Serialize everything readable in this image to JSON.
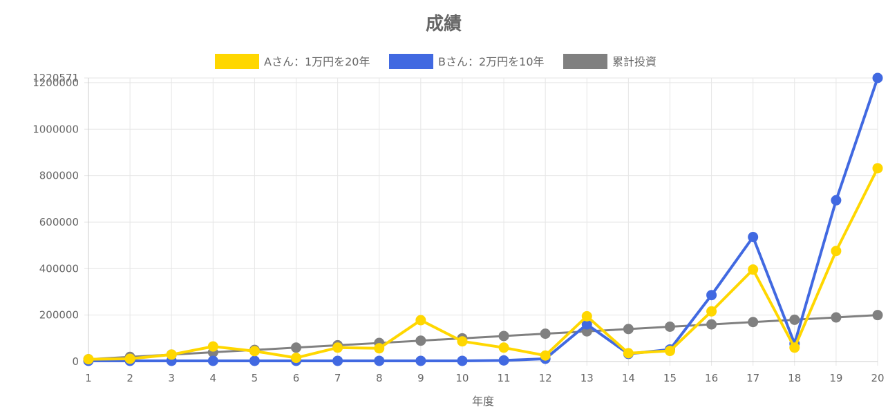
{
  "chart_data": {
    "type": "line",
    "title": "成績",
    "xlabel": "年度",
    "ylabel": "",
    "categories": [
      "1",
      "2",
      "3",
      "4",
      "5",
      "6",
      "7",
      "8",
      "9",
      "10",
      "11",
      "12",
      "13",
      "14",
      "15",
      "16",
      "17",
      "18",
      "19",
      "20"
    ],
    "y_max_label": "1220571",
    "y_ticks": [
      "0",
      "200000",
      "400000",
      "600000",
      "800000",
      "1000000",
      "1200000"
    ],
    "ylim": [
      0,
      1220571
    ],
    "grid": true,
    "legend_position": "top",
    "series": [
      {
        "name": "Aさん：1万円を20年",
        "color": "#FFD700",
        "values": [
          10000,
          12000,
          30000,
          65000,
          45000,
          16000,
          60000,
          57000,
          178000,
          87000,
          60000,
          26000,
          195000,
          36000,
          46000,
          216000,
          396000,
          60000,
          476000,
          832000
        ]
      },
      {
        "name": "Bさん：2万円を10年",
        "color": "#4169E1",
        "values": [
          3000,
          3000,
          3000,
          3000,
          3000,
          3000,
          3000,
          3000,
          3000,
          3000,
          5000,
          12000,
          160000,
          33000,
          52000,
          286000,
          536000,
          77000,
          694000,
          1220571
        ]
      },
      {
        "name": "累計投資",
        "color": "#808080",
        "values": [
          10000,
          20000,
          30000,
          40000,
          50000,
          60000,
          70000,
          80000,
          90000,
          100000,
          110000,
          120000,
          130000,
          140000,
          150000,
          160000,
          170000,
          180000,
          190000,
          200000
        ]
      }
    ]
  }
}
